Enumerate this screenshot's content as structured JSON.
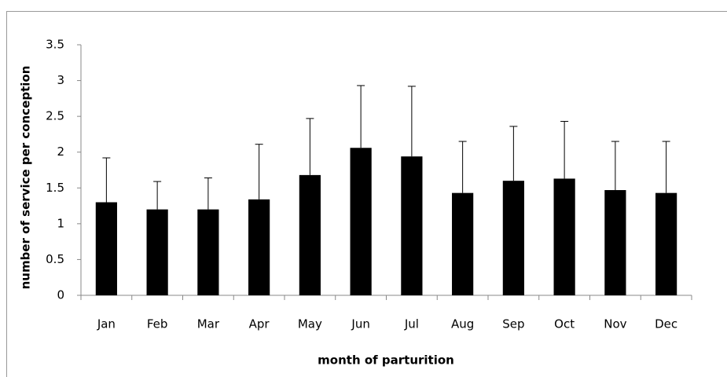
{
  "chart_data": {
    "type": "bar",
    "x_label": "month of parturition",
    "y_label": "number of service per conception",
    "categories": [
      "Jan",
      "Feb",
      "Mar",
      "Apr",
      "May",
      "Jun",
      "Jul",
      "Aug",
      "Sep",
      "Oct",
      "Nov",
      "Dec"
    ],
    "values": [
      1.3,
      1.2,
      1.2,
      1.34,
      1.68,
      2.06,
      1.94,
      1.43,
      1.6,
      1.63,
      1.47,
      1.43
    ],
    "errors": [
      0.62,
      0.39,
      0.44,
      0.77,
      0.79,
      0.87,
      0.98,
      0.72,
      0.76,
      0.8,
      0.68,
      0.72
    ],
    "color": "#000000",
    "ylim": [
      0,
      3.5
    ],
    "yticks": [
      0,
      0.5,
      1,
      1.5,
      2,
      2.5,
      3,
      3.5
    ],
    "grid": false
  }
}
